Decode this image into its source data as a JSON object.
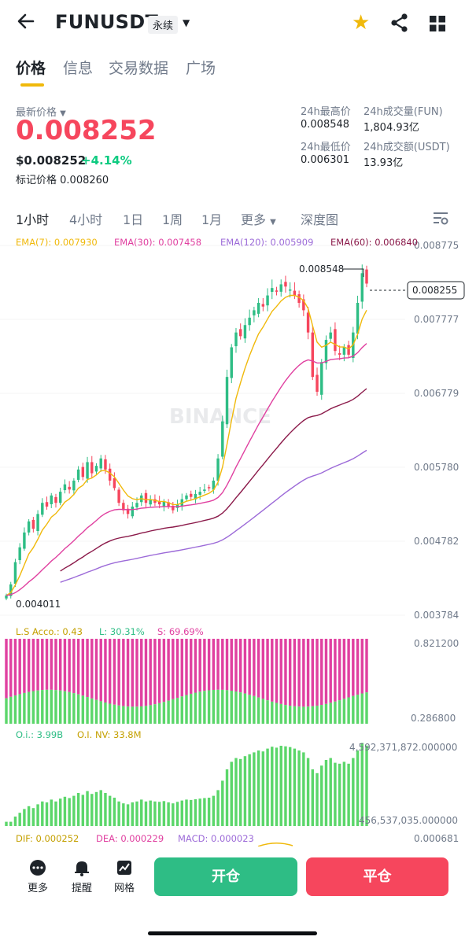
{
  "header": {
    "back_icon": "arrow-left-icon",
    "symbol": "FUNUSDT",
    "contract_type": "永续",
    "favorite_icon": "star-icon",
    "share_icon": "share-icon",
    "grid_icon": "grid-icon"
  },
  "tabs": [
    {
      "label": "价格",
      "active": true
    },
    {
      "label": "信息",
      "active": false
    },
    {
      "label": "交易数据",
      "active": false
    },
    {
      "label": "广场",
      "active": false
    }
  ],
  "price": {
    "latest_label": "最新价格",
    "latest": "0.008252",
    "usd": "$0.008252",
    "change": "+4.14%",
    "mark_label": "标记价格",
    "mark": "0.008260"
  },
  "stats": {
    "high_label": "24h最高价",
    "high": "0.008548",
    "low_label": "24h最低价",
    "low": "0.006301",
    "vol_fun_label": "24h成交量(FUN)",
    "vol_fun": "1,804.93亿",
    "vol_usdt_label": "24h成交额(USDT)",
    "vol_usdt": "13.93亿"
  },
  "intervals": [
    {
      "label": "1小时",
      "active": true
    },
    {
      "label": "4小时",
      "active": false
    },
    {
      "label": "1日",
      "active": false
    },
    {
      "label": "1周",
      "active": false
    },
    {
      "label": "1月",
      "active": false
    },
    {
      "label": "更多",
      "active": false
    },
    {
      "label": "深度图",
      "active": false
    }
  ],
  "ema": {
    "ema7": "EMA(7): 0.007930",
    "ema30": "EMA(30): 0.007458",
    "ema120": "EMA(120): 0.005909",
    "ema60": "EMA(60): 0.006840"
  },
  "colors": {
    "up": "#2ebd85",
    "down": "#f6465d",
    "ema7": "#f0b90b",
    "ema30": "#e040a0",
    "ema120": "#9c6ad8",
    "ema60": "#8b1a4a",
    "brand": "#f0b90b"
  },
  "chart_data": {
    "type": "candlestick",
    "y_axis_labels": [
      "0.008775",
      "0.007777",
      "0.006779",
      "0.005780",
      "0.004782",
      "0.003784"
    ],
    "ylim": [
      0.003784,
      0.008775
    ],
    "high_marker": "0.008548",
    "low_marker": "0.004011",
    "last_price_tag": "0.008255",
    "watermark": "BINANCE",
    "close_path": [
      0.00405,
      0.0042,
      0.0045,
      0.0047,
      0.0049,
      0.00505,
      0.00495,
      0.00515,
      0.0053,
      0.00525,
      0.0054,
      0.0053,
      0.00545,
      0.00555,
      0.00548,
      0.0056,
      0.00575,
      0.00565,
      0.00585,
      0.0057,
      0.0058,
      0.0059,
      0.00575,
      0.0056,
      0.0055,
      0.0053,
      0.0052,
      0.00515,
      0.00525,
      0.0053,
      0.0054,
      0.0053,
      0.00535,
      0.0053,
      0.00528,
      0.00532,
      0.00525,
      0.0052,
      0.00528,
      0.00535,
      0.0054,
      0.00538,
      0.00542,
      0.00545,
      0.00548,
      0.0055,
      0.0056,
      0.0059,
      0.0064,
      0.007,
      0.0074,
      0.0076,
      0.00755,
      0.0077,
      0.0078,
      0.0079,
      0.008,
      0.00795,
      0.0081,
      0.0082,
      0.00815,
      0.00825,
      0.00822,
      0.00818,
      0.0081,
      0.008,
      0.0079,
      0.0076,
      0.007,
      0.0068,
      0.0072,
      0.0075,
      0.0076,
      0.00735,
      0.0073,
      0.0074,
      0.0073,
      0.0076,
      0.008,
      0.0084,
      0.00826
    ],
    "ls_panel": {
      "account_ratio": "L.S Acco.: 0.43",
      "long": "L: 30.31%",
      "short": "S: 69.69%",
      "y_labels": [
        "0.821200",
        "0.286800"
      ]
    },
    "oi_panel": {
      "oi": "O.i.: 3.99B",
      "oi_nv": "O.I. NV: 33.8M",
      "y_labels": [
        "4,592,371,872.000000",
        "456,537,035.000000"
      ]
    },
    "macd_panel": {
      "dif": "DIF: 0.000252",
      "dea": "DEA: 0.000229",
      "macd": "MACD: 0.000023",
      "y_label": "0.000681"
    }
  },
  "footer": {
    "more": "更多",
    "alert": "提醒",
    "grid": "网格",
    "open": "开仓",
    "close": "平仓"
  }
}
